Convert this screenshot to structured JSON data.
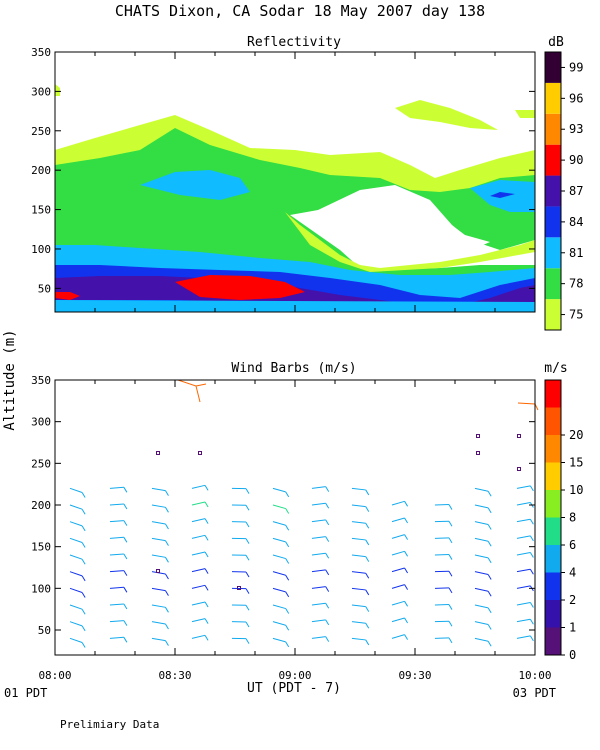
{
  "header": {
    "title": "CHATS Dixon, CA  Sodar  18 May 2007  day 138"
  },
  "axes": {
    "ylabel": "Altitude (m)",
    "xlabel": "UT  (PDT - 7)",
    "left_footer": "01 PDT",
    "right_footer": "03 PDT",
    "note": "Prelimiary Data"
  },
  "chart_data": [
    {
      "type": "heatmap",
      "title": "Reflectivity",
      "colorbar_unit": "dB",
      "colorbar_ticks": [
        "75",
        "78",
        "81",
        "84",
        "87",
        "90",
        "93",
        "96",
        "99"
      ],
      "colorbar_colors": [
        "#ccff33",
        "#33dd44",
        "#11bbff",
        "#1133ee",
        "#4411aa",
        "#ff0000",
        "#ff8800",
        "#ffcc00",
        "#330033"
      ],
      "xlim": [
        "08:00",
        "10:00"
      ],
      "ylim": [
        20,
        350
      ],
      "yticks": [
        50,
        100,
        150,
        200,
        250,
        300,
        350
      ],
      "grid": false
    },
    {
      "type": "scatter",
      "title": "Wind Barbs (m/s)",
      "colorbar_unit": "m/s",
      "colorbar_ticks": [
        "0",
        "1",
        "2",
        "4",
        "6",
        "8",
        "10",
        "15",
        "20"
      ],
      "colorbar_colors": [
        "#551177",
        "#3311aa",
        "#1133ee",
        "#11aaee",
        "#22dd88",
        "#88ee22",
        "#ffcc00",
        "#ff8800",
        "#ff5500",
        "#ff0000"
      ],
      "xlim": [
        "08:00",
        "10:00"
      ],
      "xticks": [
        "08:00",
        "08:30",
        "09:00",
        "09:30",
        "10:00"
      ],
      "ylim": [
        20,
        350
      ],
      "yticks": [
        50,
        100,
        150,
        200,
        250,
        300,
        350
      ],
      "grid": false
    }
  ]
}
